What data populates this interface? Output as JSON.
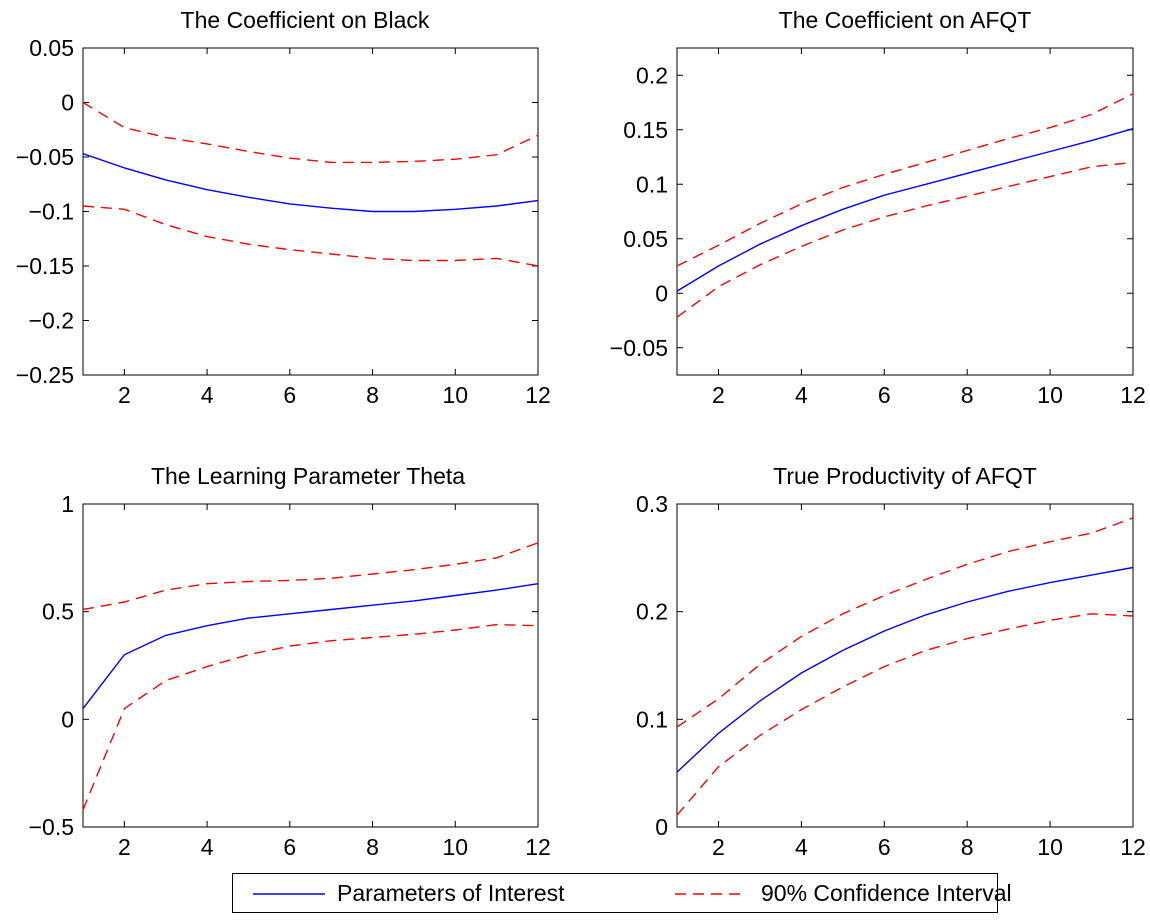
{
  "chart_data": [
    {
      "type": "line",
      "title": "The Coefficient on Black",
      "xlim": [
        1,
        12
      ],
      "ylim": [
        -0.25,
        0.05
      ],
      "xticks": [
        2,
        4,
        6,
        8,
        10,
        12
      ],
      "xtick_labels": [
        "2",
        "4",
        "6",
        "8",
        "10",
        "12"
      ],
      "yticks": [
        -0.25,
        -0.2,
        -0.15,
        -0.1,
        -0.05,
        0,
        0.05
      ],
      "ytick_labels": [
        "−0.25",
        "−0.2",
        "−0.15",
        "−0.1",
        "−0.05",
        "0",
        "0.05"
      ],
      "x": [
        1,
        2,
        3,
        4,
        5,
        6,
        7,
        8,
        9,
        10,
        11,
        12
      ],
      "series": [
        {
          "name": "Parameters of Interest",
          "values": [
            -0.047,
            -0.06,
            -0.071,
            -0.08,
            -0.087,
            -0.093,
            -0.097,
            -0.1,
            -0.1,
            -0.098,
            -0.095,
            -0.09
          ],
          "color": "#0000ff",
          "style": "solid"
        },
        {
          "name": "90% Confidence Interval",
          "values": [
            0.0,
            -0.023,
            -0.032,
            -0.038,
            -0.045,
            -0.051,
            -0.055,
            -0.055,
            -0.054,
            -0.052,
            -0.048,
            -0.03
          ],
          "color": "#ff0000",
          "style": "dashed"
        },
        {
          "name": "90% Confidence Interval",
          "values": [
            -0.095,
            -0.098,
            -0.112,
            -0.123,
            -0.13,
            -0.135,
            -0.139,
            -0.143,
            -0.145,
            -0.145,
            -0.143,
            -0.15
          ],
          "color": "#ff0000",
          "style": "dashed"
        }
      ]
    },
    {
      "type": "line",
      "title": "The Coefficient on AFQT",
      "xlim": [
        1,
        12
      ],
      "ylim": [
        -0.075,
        0.225
      ],
      "xticks": [
        2,
        4,
        6,
        8,
        10,
        12
      ],
      "xtick_labels": [
        "2",
        "4",
        "6",
        "8",
        "10",
        "12"
      ],
      "yticks": [
        -0.05,
        0,
        0.05,
        0.1,
        0.15,
        0.2
      ],
      "ytick_labels": [
        "−0.05",
        "0",
        "0.05",
        "0.1",
        "0.15",
        "0.2"
      ],
      "x": [
        1,
        2,
        3,
        4,
        5,
        6,
        7,
        8,
        9,
        10,
        11,
        12
      ],
      "series": [
        {
          "name": "Parameters of Interest",
          "values": [
            0.002,
            0.025,
            0.045,
            0.062,
            0.077,
            0.09,
            0.1,
            0.11,
            0.12,
            0.13,
            0.14,
            0.151
          ],
          "color": "#0000ff",
          "style": "solid"
        },
        {
          "name": "90% Confidence Interval",
          "values": [
            0.025,
            0.044,
            0.064,
            0.082,
            0.097,
            0.109,
            0.12,
            0.131,
            0.142,
            0.152,
            0.164,
            0.183
          ],
          "color": "#ff0000",
          "style": "dashed"
        },
        {
          "name": "90% Confidence Interval",
          "values": [
            -0.022,
            0.006,
            0.026,
            0.043,
            0.058,
            0.07,
            0.08,
            0.089,
            0.098,
            0.107,
            0.116,
            0.12
          ],
          "color": "#ff0000",
          "style": "dashed"
        }
      ]
    },
    {
      "type": "line",
      "title": "The Learning Parameter Theta",
      "xlim": [
        1,
        12
      ],
      "ylim": [
        -0.5,
        1
      ],
      "xticks": [
        2,
        4,
        6,
        8,
        10,
        12
      ],
      "xtick_labels": [
        "2",
        "4",
        "6",
        "8",
        "10",
        "12"
      ],
      "yticks": [
        -0.5,
        0,
        0.5,
        1
      ],
      "ytick_labels": [
        "−0.5",
        "0",
        "0.5",
        "1"
      ],
      "x": [
        1,
        2,
        3,
        4,
        5,
        6,
        7,
        8,
        9,
        10,
        11,
        12
      ],
      "series": [
        {
          "name": "Parameters of Interest",
          "values": [
            0.05,
            0.3,
            0.39,
            0.435,
            0.47,
            0.49,
            0.51,
            0.53,
            0.55,
            0.575,
            0.6,
            0.63
          ],
          "color": "#0000ff",
          "style": "solid"
        },
        {
          "name": "90% Confidence Interval",
          "values": [
            0.51,
            0.545,
            0.6,
            0.63,
            0.64,
            0.645,
            0.655,
            0.675,
            0.695,
            0.72,
            0.75,
            0.82
          ],
          "color": "#ff0000",
          "style": "dashed"
        },
        {
          "name": "90% Confidence Interval",
          "values": [
            -0.42,
            0.05,
            0.18,
            0.245,
            0.3,
            0.34,
            0.365,
            0.38,
            0.395,
            0.415,
            0.44,
            0.435
          ],
          "color": "#ff0000",
          "style": "dashed"
        }
      ]
    },
    {
      "type": "line",
      "title": "True Productivity of AFQT",
      "xlim": [
        1,
        12
      ],
      "ylim": [
        0,
        0.3
      ],
      "xticks": [
        2,
        4,
        6,
        8,
        10,
        12
      ],
      "xtick_labels": [
        "2",
        "4",
        "6",
        "8",
        "10",
        "12"
      ],
      "yticks": [
        0,
        0.1,
        0.2,
        0.3
      ],
      "ytick_labels": [
        "0",
        "0.1",
        "0.2",
        "0.3"
      ],
      "x": [
        1,
        2,
        3,
        4,
        5,
        6,
        7,
        8,
        9,
        10,
        11,
        12
      ],
      "series": [
        {
          "name": "Parameters of Interest",
          "values": [
            0.051,
            0.087,
            0.117,
            0.143,
            0.164,
            0.182,
            0.197,
            0.209,
            0.219,
            0.227,
            0.234,
            0.241
          ],
          "color": "#0000ff",
          "style": "solid"
        },
        {
          "name": "90% Confidence Interval",
          "values": [
            0.093,
            0.119,
            0.151,
            0.177,
            0.198,
            0.215,
            0.23,
            0.244,
            0.256,
            0.265,
            0.273,
            0.287
          ],
          "color": "#ff0000",
          "style": "dashed"
        },
        {
          "name": "90% Confidence Interval",
          "values": [
            0.011,
            0.056,
            0.085,
            0.109,
            0.13,
            0.149,
            0.164,
            0.175,
            0.184,
            0.192,
            0.198,
            0.196
          ],
          "color": "#ff0000",
          "style": "dashed"
        }
      ]
    }
  ],
  "legend": {
    "entries": [
      {
        "label": "Parameters of Interest",
        "color": "#0000ff",
        "style": "solid"
      },
      {
        "label": "90% Confidence Interval",
        "color": "#ff0000",
        "style": "dashed"
      }
    ],
    "placement": "bottom-center"
  }
}
